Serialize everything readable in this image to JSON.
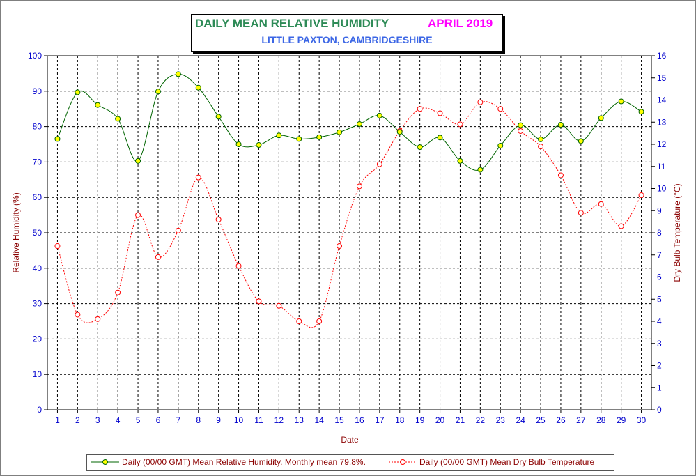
{
  "title": {
    "main": "DAILY MEAN RELATIVE HUMIDITY",
    "month": "APRIL 2019",
    "subtitle": "LITTLE PAXTON, CAMBRIDGESHIRE"
  },
  "colors": {
    "rh_line": "#006400",
    "rh_marker": "#ffff00",
    "temp_line": "#ff0000",
    "temp_marker_fill": "#ffffff",
    "left_axis_label": "#8b0000",
    "right_axis_label": "#8b0000",
    "tick_text": "#0000cd",
    "grid": "#000000"
  },
  "chart_data": {
    "type": "line",
    "xlabel": "Date",
    "ylabel_left": "Relative Humidity (%)",
    "ylabel_right": "Dry Bulb Temperature (°C)",
    "x": [
      1,
      2,
      3,
      4,
      5,
      6,
      7,
      8,
      9,
      10,
      11,
      12,
      13,
      14,
      15,
      16,
      17,
      18,
      19,
      20,
      21,
      22,
      23,
      24,
      25,
      26,
      27,
      28,
      29,
      30
    ],
    "ylim_left": [
      0,
      100
    ],
    "yticks_left": [
      0,
      10,
      20,
      30,
      40,
      50,
      60,
      70,
      80,
      90,
      100
    ],
    "ylim_right": [
      0,
      16
    ],
    "yticks_right": [
      0,
      1,
      2,
      3,
      4,
      5,
      6,
      7,
      8,
      9,
      10,
      11,
      12,
      13,
      14,
      15,
      16
    ],
    "grid": true,
    "legend_position": "bottom",
    "series": [
      {
        "name": "Daily (00/00 GMT) Mean Relative Humidity. Monthly mean 79.8%.",
        "axis": "left",
        "values": [
          76.5,
          89.7,
          86.1,
          82.2,
          70.3,
          89.9,
          94.8,
          91.0,
          82.8,
          75.0,
          74.8,
          77.5,
          76.5,
          77.0,
          78.4,
          80.7,
          83.1,
          78.5,
          74.2,
          76.9,
          70.3,
          67.8,
          74.6,
          80.4,
          76.4,
          80.5,
          75.9,
          82.4,
          87.1,
          84.2
        ]
      },
      {
        "name": "Daily (00/00 GMT) Mean Dry Bulb Temperature",
        "axis": "right",
        "values": [
          7.4,
          4.3,
          4.1,
          5.3,
          8.8,
          6.9,
          8.1,
          10.5,
          8.6,
          6.5,
          4.9,
          4.7,
          4.0,
          4.0,
          7.4,
          10.1,
          11.1,
          12.6,
          13.6,
          13.4,
          12.9,
          13.9,
          13.6,
          12.6,
          11.9,
          10.6,
          8.9,
          9.3,
          8.3,
          9.7
        ]
      }
    ]
  }
}
